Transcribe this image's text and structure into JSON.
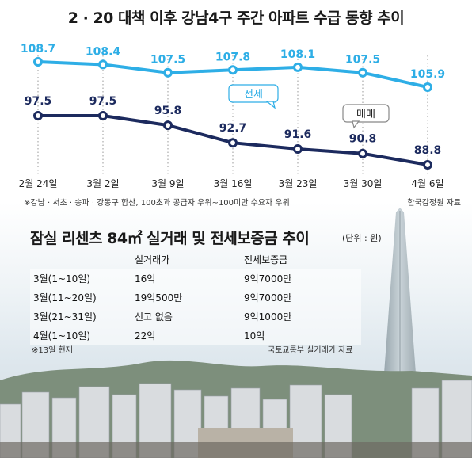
{
  "title": "2 · 20 대책 이후 강남4구 주간 아파트 수급 동향 추이",
  "chart_data": {
    "type": "line",
    "categories": [
      "2월 24일",
      "3월 2일",
      "3월 9일",
      "3월 16일",
      "3월 23일",
      "3월 30일",
      "4월 6일"
    ],
    "series": [
      {
        "name": "전세",
        "values": [
          108.7,
          108.4,
          107.5,
          107.8,
          108.1,
          107.5,
          105.9
        ],
        "color": "#2eaee6"
      },
      {
        "name": "매매",
        "values": [
          97.5,
          97.5,
          95.8,
          92.7,
          91.6,
          90.8,
          88.8
        ],
        "color": "#1c2a5e"
      }
    ],
    "data_labels": {
      "jeonse": [
        "108.7",
        "108.4",
        "107.5",
        "107.8",
        "108.1",
        "107.5",
        "105.9"
      ],
      "maemae": [
        "97.5",
        "97.5",
        "95.8",
        "92.7",
        "91.6",
        "90.8",
        "88.8"
      ]
    },
    "footnote": "※강남 · 서초 · 송파 · 강동구 합산, 100초과 공급자 우위~100미만 수요자 우위",
    "source": "한국감정원 자료"
  },
  "table": {
    "title": "잠실 리센츠 84㎡ 실거래 및 전세보증금 추이",
    "unit": "(단위 : 원)",
    "headers": [
      "",
      "실거래가",
      "전세보증금"
    ],
    "rows": [
      [
        "3월(1~10일)",
        "16억",
        "9억7000만"
      ],
      [
        "3월(11~20일)",
        "19억500만",
        "9억7000만"
      ],
      [
        "3월(21~31일)",
        "신고 없음",
        "9억1000만"
      ],
      [
        "4월(1~10일)",
        "22억",
        "10억"
      ]
    ],
    "footnote": "※13일 현재",
    "source": "국토교통부 실거래가 자료"
  }
}
